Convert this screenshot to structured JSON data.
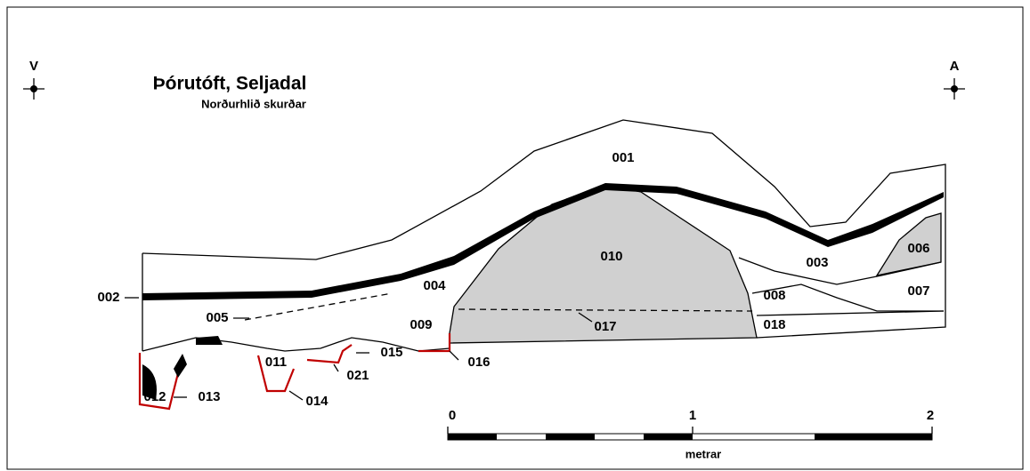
{
  "header": {
    "title": "Þórutóft, Seljadal",
    "subtitle": "Norðurhlið skurðar"
  },
  "orientation": {
    "left": "V",
    "right": "A"
  },
  "layers": [
    "001",
    "002",
    "003",
    "004",
    "005",
    "006",
    "007",
    "008",
    "009",
    "010",
    "011",
    "012",
    "013",
    "014",
    "015",
    "016",
    "017",
    "018",
    "021"
  ],
  "scale": {
    "labels": [
      "0",
      "1",
      "2"
    ],
    "unit": "metrar"
  }
}
